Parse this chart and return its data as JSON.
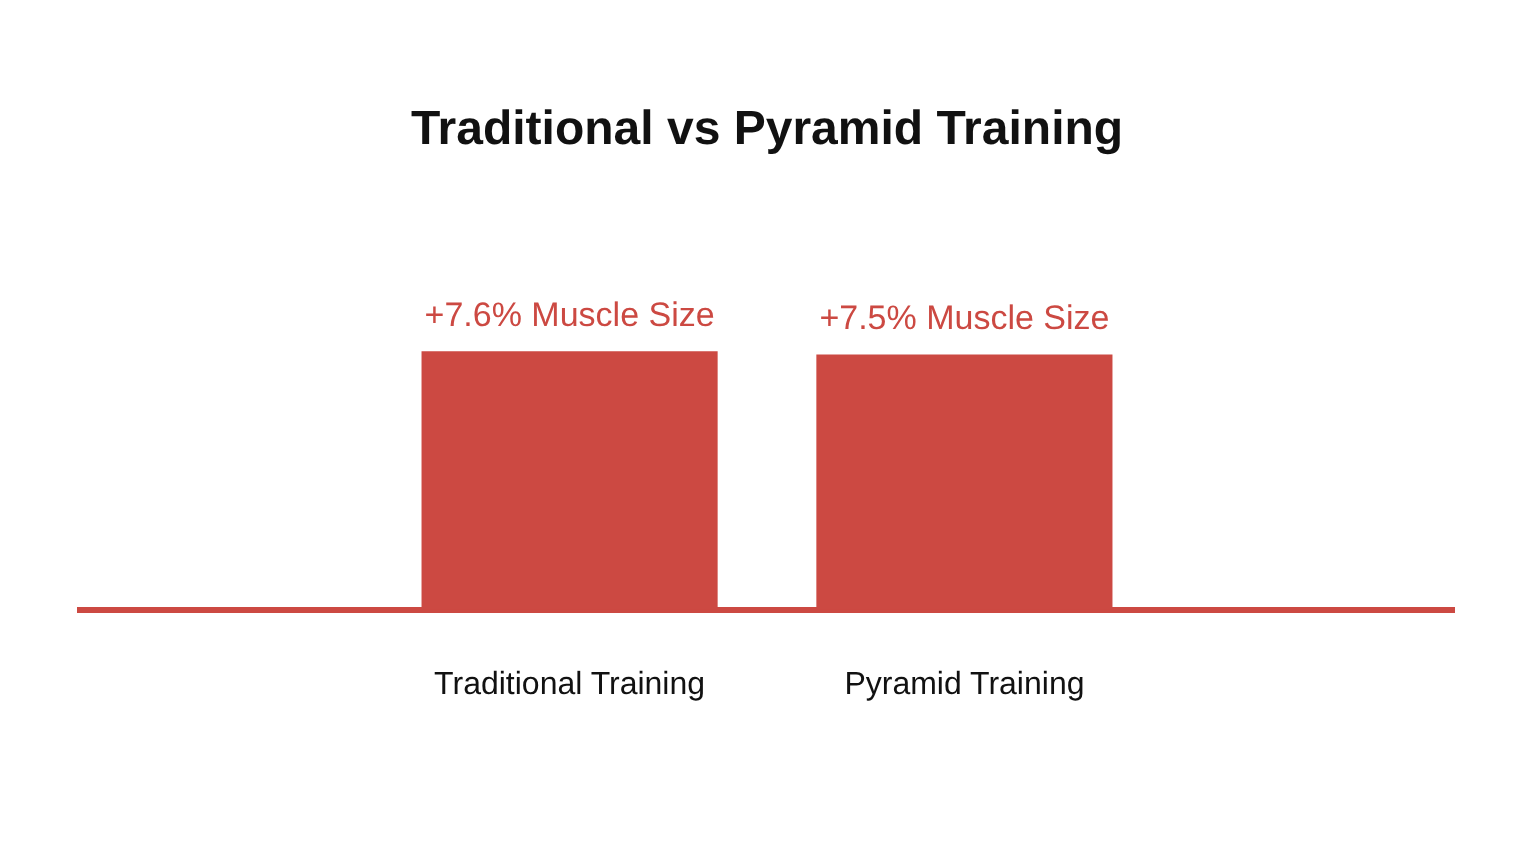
{
  "chart_data": {
    "type": "bar",
    "title": "Traditional vs Pyramid Training",
    "categories": [
      "Traditional Training",
      "Pyramid Training"
    ],
    "values": [
      7.6,
      7.5
    ],
    "color": "#cc4942",
    "value_labels": [
      "+7.6% Muscle Size",
      "+7.5% Muscle Size"
    ],
    "grid": false,
    "legend": false,
    "tick_labels": "x"
  }
}
